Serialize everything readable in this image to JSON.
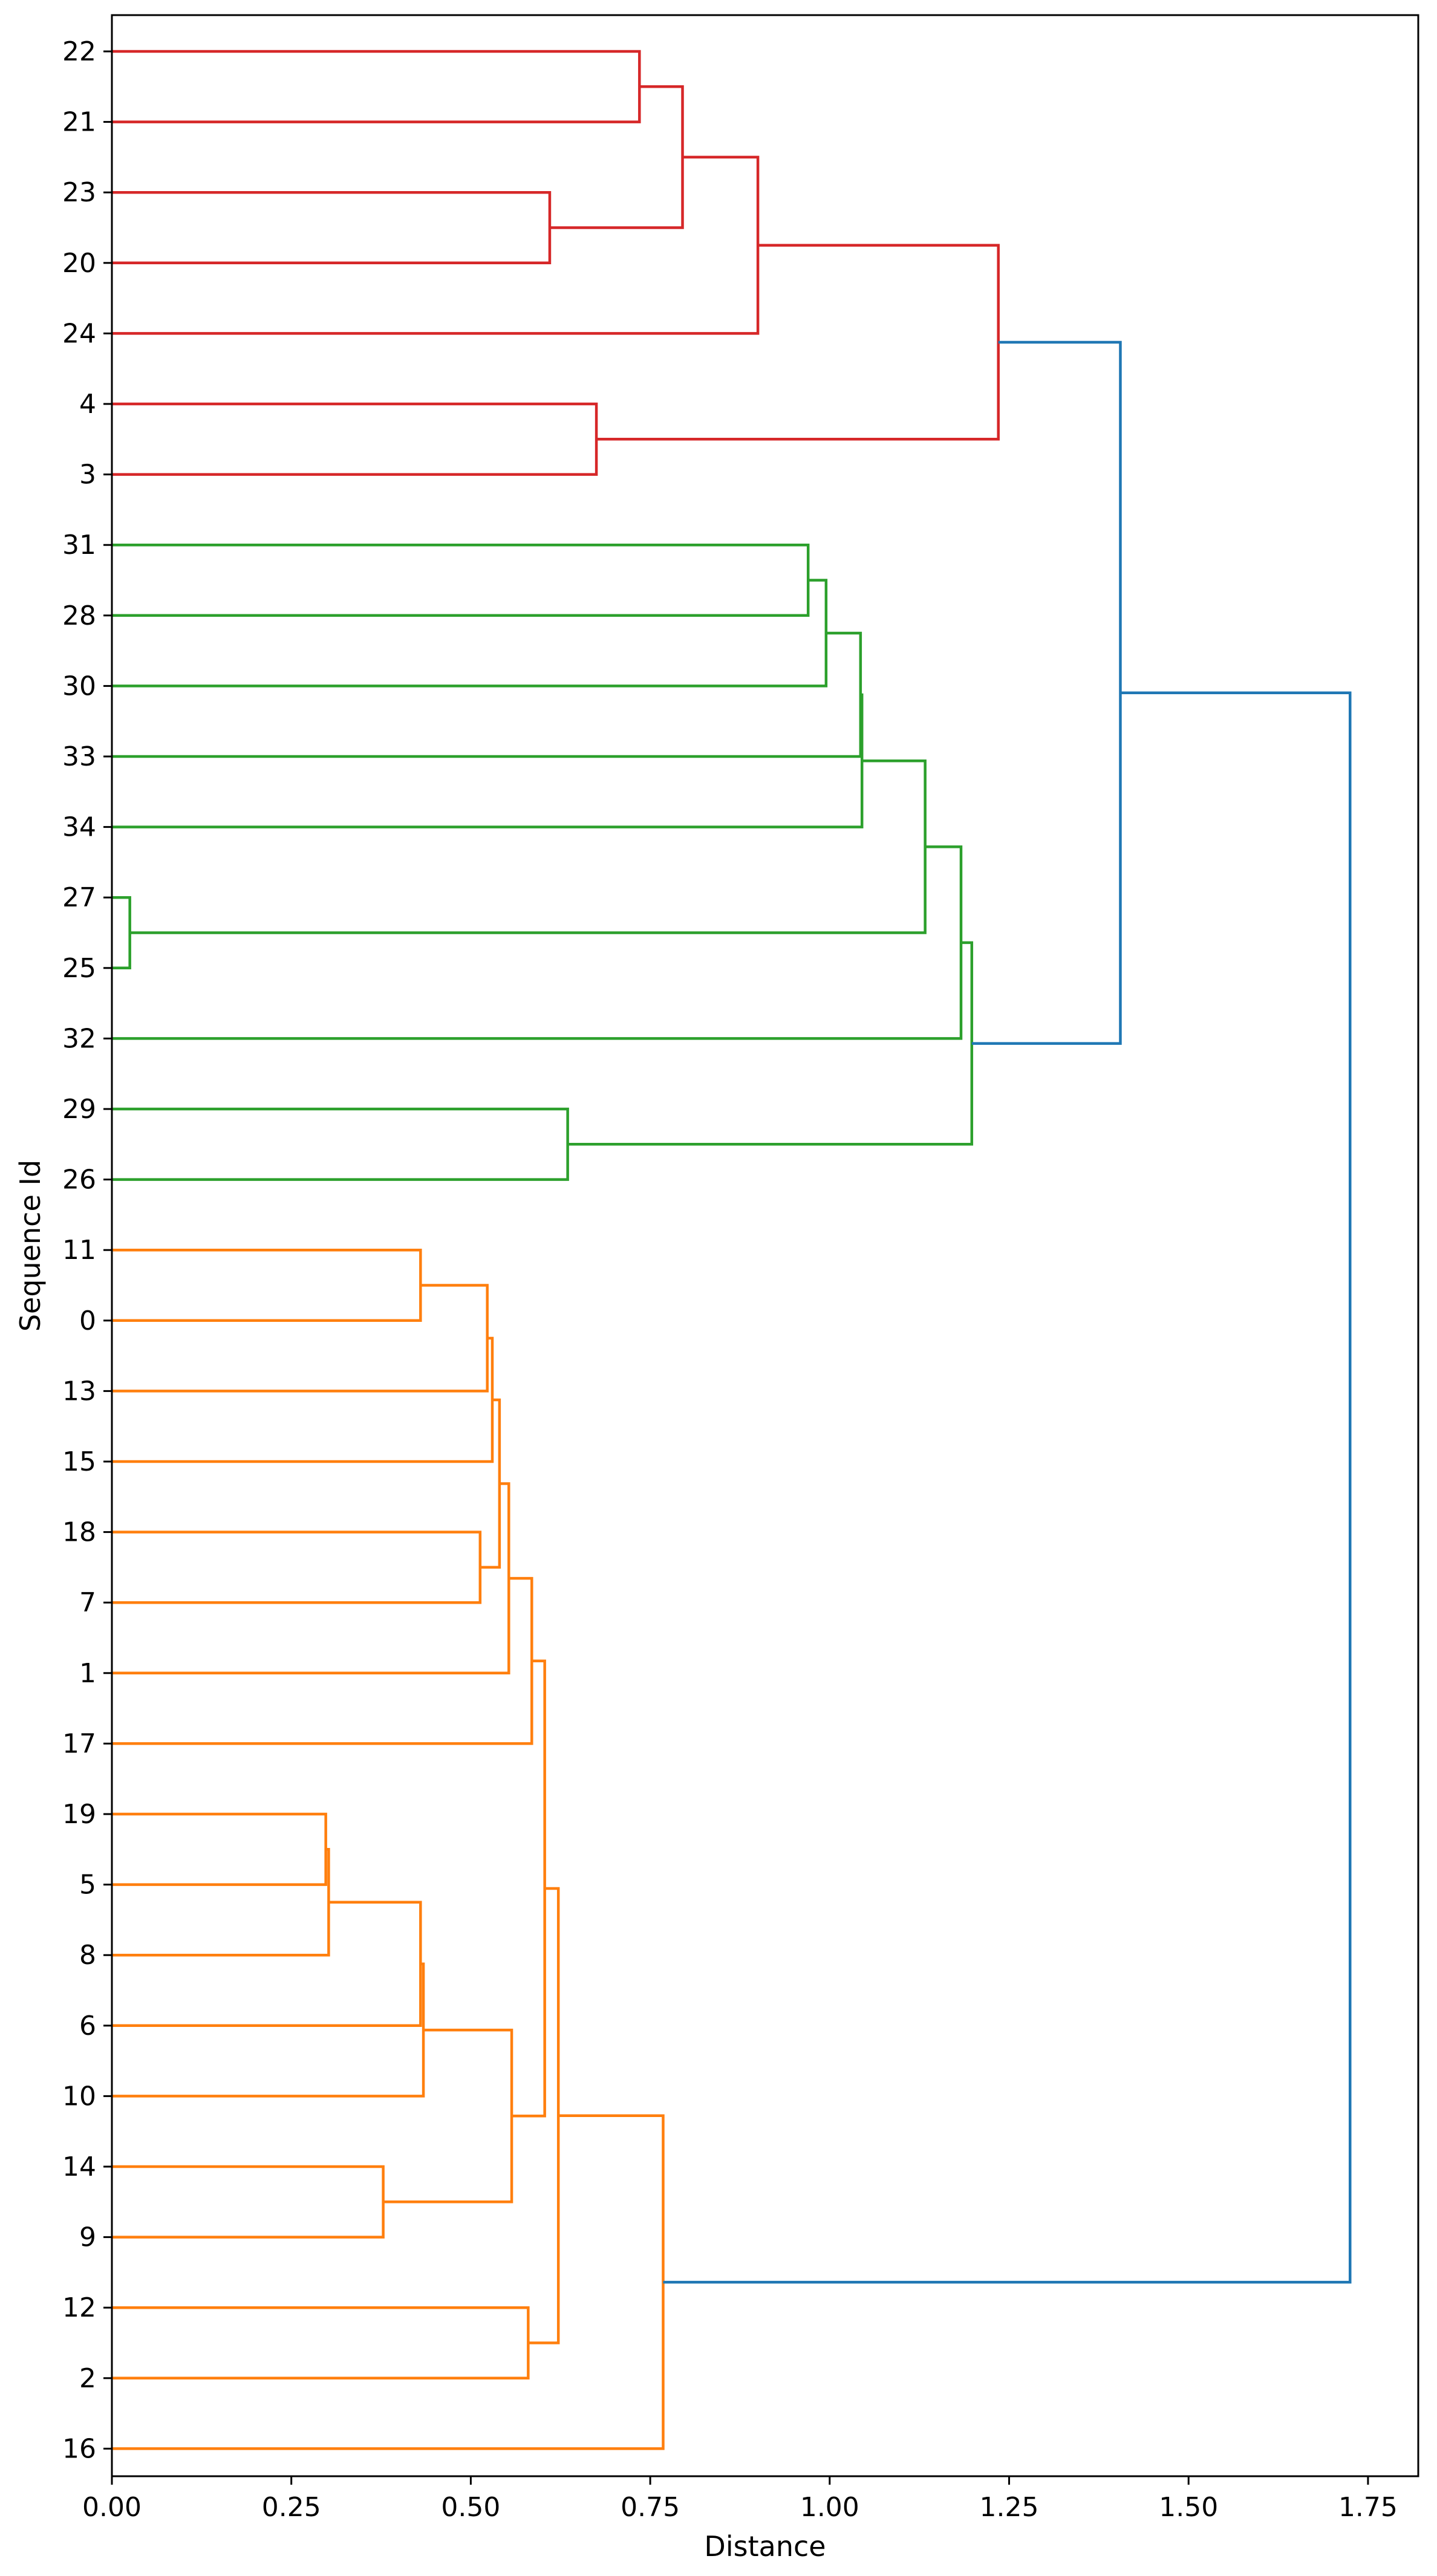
{
  "chart_data": {
    "type": "dendrogram",
    "orientation": "horizontal",
    "title": "",
    "xlabel": "Distance",
    "ylabel": "Sequence Id",
    "xlim": [
      0,
      1.82
    ],
    "xticks": [
      0.0,
      0.25,
      0.5,
      0.75,
      1.0,
      1.25,
      1.5,
      1.75
    ],
    "xtick_labels": [
      "0.00",
      "0.25",
      "0.50",
      "0.75",
      "1.00",
      "1.25",
      "1.50",
      "1.75"
    ],
    "grid": false,
    "leaves": [
      "22",
      "21",
      "23",
      "20",
      "24",
      "4",
      "3",
      "31",
      "28",
      "30",
      "33",
      "34",
      "27",
      "25",
      "32",
      "29",
      "26",
      "11",
      "0",
      "13",
      "15",
      "18",
      "7",
      "1",
      "17",
      "19",
      "5",
      "8",
      "6",
      "10",
      "14",
      "9",
      "12",
      "2",
      "16"
    ],
    "colors": {
      "cluster_red": "#d62728",
      "cluster_green": "#2ca02c",
      "cluster_orange": "#ff7f0e",
      "link_above_threshold": "#1f77b4"
    },
    "merges": [
      {
        "id": "A1",
        "left": "22",
        "right": "21",
        "distance": 0.735,
        "color": "cluster_red"
      },
      {
        "id": "A2",
        "left": "23",
        "right": "20",
        "distance": 0.61,
        "color": "cluster_red"
      },
      {
        "id": "A3",
        "left": "A1",
        "right": "A2",
        "distance": 0.795,
        "color": "cluster_red"
      },
      {
        "id": "A4",
        "left": "A3",
        "right": "24",
        "distance": 0.9,
        "color": "cluster_red"
      },
      {
        "id": "A5",
        "left": "4",
        "right": "3",
        "distance": 0.675,
        "color": "cluster_red"
      },
      {
        "id": "A6",
        "left": "A4",
        "right": "A5",
        "distance": 1.235,
        "color": "cluster_red"
      },
      {
        "id": "B1",
        "left": "31",
        "right": "28",
        "distance": 0.97,
        "color": "cluster_green"
      },
      {
        "id": "B2",
        "left": "B1",
        "right": "30",
        "distance": 0.995,
        "color": "cluster_green"
      },
      {
        "id": "B3",
        "left": "B2",
        "right": "33",
        "distance": 1.043,
        "color": "cluster_green"
      },
      {
        "id": "B4",
        "left": "B3",
        "right": "34",
        "distance": 1.045,
        "color": "cluster_green"
      },
      {
        "id": "B5",
        "left": "27",
        "right": "25",
        "distance": 0.025,
        "color": "cluster_green"
      },
      {
        "id": "B6",
        "left": "B4",
        "right": "B5",
        "distance": 1.133,
        "color": "cluster_green"
      },
      {
        "id": "B7",
        "left": "B6",
        "right": "32",
        "distance": 1.183,
        "color": "cluster_green"
      },
      {
        "id": "B8",
        "left": "29",
        "right": "26",
        "distance": 0.635,
        "color": "cluster_green"
      },
      {
        "id": "B9",
        "left": "B7",
        "right": "B8",
        "distance": 1.198,
        "color": "cluster_green"
      },
      {
        "id": "C1",
        "left": "11",
        "right": "0",
        "distance": 0.43,
        "color": "cluster_orange"
      },
      {
        "id": "C2",
        "left": "C1",
        "right": "13",
        "distance": 0.523,
        "color": "cluster_orange"
      },
      {
        "id": "C3",
        "left": "C2",
        "right": "15",
        "distance": 0.53,
        "color": "cluster_orange"
      },
      {
        "id": "C4",
        "left": "18",
        "right": "7",
        "distance": 0.513,
        "color": "cluster_orange"
      },
      {
        "id": "C5",
        "left": "C3",
        "right": "C4",
        "distance": 0.54,
        "color": "cluster_orange"
      },
      {
        "id": "C6",
        "left": "C5",
        "right": "1",
        "distance": 0.553,
        "color": "cluster_orange"
      },
      {
        "id": "C7",
        "left": "C6",
        "right": "17",
        "distance": 0.585,
        "color": "cluster_orange"
      },
      {
        "id": "C8",
        "left": "19",
        "right": "5",
        "distance": 0.298,
        "color": "cluster_orange"
      },
      {
        "id": "C9",
        "left": "C8",
        "right": "8",
        "distance": 0.302,
        "color": "cluster_orange"
      },
      {
        "id": "C10",
        "left": "C9",
        "right": "6",
        "distance": 0.43,
        "color": "cluster_orange"
      },
      {
        "id": "C11",
        "left": "C10",
        "right": "10",
        "distance": 0.434,
        "color": "cluster_orange"
      },
      {
        "id": "C12",
        "left": "14",
        "right": "9",
        "distance": 0.378,
        "color": "cluster_orange"
      },
      {
        "id": "C13",
        "left": "C11",
        "right": "C12",
        "distance": 0.557,
        "color": "cluster_orange"
      },
      {
        "id": "C14",
        "left": "C7",
        "right": "C13",
        "distance": 0.603,
        "color": "cluster_orange"
      },
      {
        "id": "C15",
        "left": "12",
        "right": "2",
        "distance": 0.58,
        "color": "cluster_orange"
      },
      {
        "id": "C16",
        "left": "C14",
        "right": "C15",
        "distance": 0.622,
        "color": "cluster_orange"
      },
      {
        "id": "C17",
        "left": "C16",
        "right": "16",
        "distance": 0.768,
        "color": "cluster_orange"
      },
      {
        "id": "D1",
        "left": "A6",
        "right": "B9",
        "distance": 1.405,
        "color": "link_above_threshold"
      },
      {
        "id": "D2",
        "left": "D1",
        "right": "C17",
        "distance": 1.725,
        "color": "link_above_threshold"
      }
    ]
  }
}
